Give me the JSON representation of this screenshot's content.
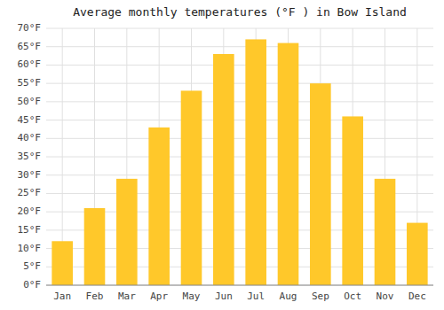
{
  "chart_data": {
    "type": "bar",
    "title": "Average monthly temperatures (°F ) in Bow Island",
    "categories": [
      "Jan",
      "Feb",
      "Mar",
      "Apr",
      "May",
      "Jun",
      "Jul",
      "Aug",
      "Sep",
      "Oct",
      "Nov",
      "Dec"
    ],
    "values": [
      12,
      21,
      29,
      43,
      53,
      63,
      67,
      66,
      55,
      46,
      29,
      17
    ],
    "color": "#FFC82A",
    "ylim": [
      0,
      70
    ],
    "yticks": [
      {
        "value": 0,
        "label": "0°F"
      },
      {
        "value": 5,
        "label": "5°F"
      },
      {
        "value": 10,
        "label": "10°F"
      },
      {
        "value": 15,
        "label": "15°F"
      },
      {
        "value": 20,
        "label": "20°F"
      },
      {
        "value": 25,
        "label": "25°F"
      },
      {
        "value": 30,
        "label": "30°F"
      },
      {
        "value": 35,
        "label": "35°F"
      },
      {
        "value": 40,
        "label": "40°F"
      },
      {
        "value": 45,
        "label": "45°F"
      },
      {
        "value": 50,
        "label": "50°F"
      },
      {
        "value": 55,
        "label": "55°F"
      },
      {
        "value": 60,
        "label": "60°F"
      },
      {
        "value": 65,
        "label": "65°F"
      },
      {
        "value": 70,
        "label": "70°F"
      }
    ],
    "grid": true
  }
}
